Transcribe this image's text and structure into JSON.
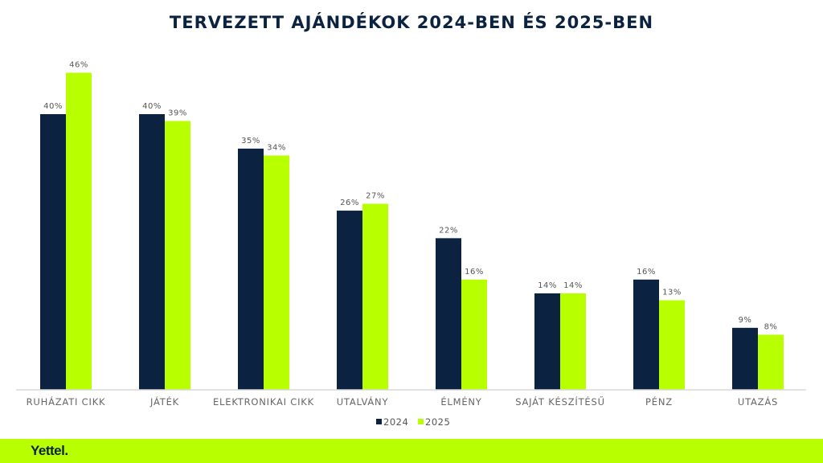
{
  "chart_data": {
    "type": "bar",
    "title": "TERVEZETT AJÁNDÉKOK 2024-BEN ÉS 2025-BEN",
    "categories": [
      "RUHÁZATI CIKK",
      "JÁTÉK",
      "ELEKTRONIKAI CIKK",
      "UTALVÁNY",
      "ÉLMÉNY",
      "SAJÁT KÉSZÍTÉSŰ",
      "PÉNZ",
      "UTAZÁS"
    ],
    "series": [
      {
        "name": "2024",
        "color": "#0b2340",
        "values": [
          40,
          40,
          35,
          26,
          22,
          14,
          16,
          9
        ]
      },
      {
        "name": "2025",
        "color": "#b8ff00",
        "values": [
          46,
          39,
          34,
          27,
          16,
          14,
          13,
          8
        ]
      }
    ],
    "value_format": "%",
    "ylim": [
      0,
      50
    ],
    "grid": false,
    "legend": "bottom"
  },
  "footer": {
    "logo": "Yettel.",
    "background": "#b8ff00"
  }
}
